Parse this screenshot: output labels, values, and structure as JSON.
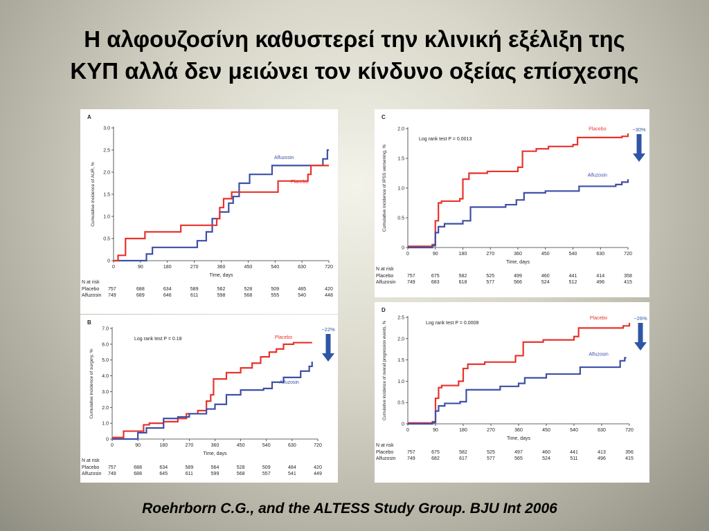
{
  "slide": {
    "title_line1": "Η αλφουζοσίνη καθυστερεί την κλινική εξέλιξη της",
    "title_line2": "ΚΥΠ αλλά δεν μειώνει τον κίνδυνο οξείας επίσχεσης",
    "citation": "Roehrborn C.G., and the ALTESS Study Group. BJU Int 2006"
  },
  "colors": {
    "placebo": "#e8322b",
    "alfuzosin": "#3d4fa6",
    "arrow": "#2f55a4",
    "axis": "#333333"
  },
  "chart_data": [
    {
      "panel": "A",
      "type": "line",
      "xlabel": "Time, days",
      "ylabel": "Cumulative incidence of AUR, %",
      "xlim": [
        0,
        720
      ],
      "ylim": [
        0,
        3.0
      ],
      "xticks": [
        0,
        90,
        180,
        270,
        360,
        450,
        540,
        630,
        720
      ],
      "yticks": [
        0,
        0.5,
        1.0,
        1.5,
        2.0,
        2.5,
        3.0
      ],
      "ytick_labels": [
        "0",
        "0.5",
        "1.0",
        "1.5",
        "2.0",
        "2.5",
        "3.0"
      ],
      "annotation": "",
      "series": [
        {
          "name": "Alfuzosin",
          "color": "#3d4fa6",
          "x": [
            0,
            85,
            110,
            130,
            230,
            280,
            310,
            330,
            355,
            385,
            400,
            420,
            455,
            490,
            530,
            565,
            700,
            710,
            715,
            720
          ],
          "y": [
            0,
            0,
            0.15,
            0.3,
            0.3,
            0.45,
            0.65,
            0.95,
            1.1,
            1.3,
            1.45,
            1.75,
            1.95,
            1.95,
            2.15,
            2.15,
            2.3,
            2.3,
            2.5,
            2.5
          ]
        },
        {
          "name": "Placebo",
          "color": "#e8322b",
          "x": [
            0,
            15,
            40,
            105,
            225,
            345,
            355,
            368,
            395,
            440,
            550,
            650,
            660,
            720
          ],
          "y": [
            0,
            0.12,
            0.5,
            0.65,
            0.8,
            0.95,
            1.2,
            1.4,
            1.55,
            1.55,
            1.8,
            1.95,
            2.15,
            2.15
          ]
        }
      ],
      "series_labels": [
        {
          "text": "Alfuzosin",
          "at_x": 570,
          "at_y": 2.3
        },
        {
          "text": "Placebo",
          "at_x": 622,
          "at_y": 1.75
        }
      ],
      "risk_table": {
        "header": "N at risk",
        "rows": [
          {
            "label": "Placebo",
            "values": [
              "757",
              "688",
              "634",
              "589",
              "562",
              "528",
              "509",
              "485",
              "420"
            ]
          },
          {
            "label": "Alfuzosin",
            "values": [
              "749",
              "689",
              "646",
              "611",
              "598",
              "568",
              "555",
              "540",
              "448"
            ]
          }
        ]
      }
    },
    {
      "panel": "B",
      "type": "line",
      "xlabel": "Time, days",
      "ylabel": "Cumulative incidence of surgery, %",
      "xlim": [
        0,
        720
      ],
      "ylim": [
        0,
        7.0
      ],
      "xticks": [
        0,
        90,
        180,
        270,
        360,
        450,
        540,
        630,
        720
      ],
      "yticks": [
        0,
        1.0,
        2.0,
        3.0,
        4.0,
        5.0,
        6.0,
        7.0
      ],
      "ytick_labels": [
        "0",
        "1.0",
        "2.0",
        "3.0",
        "4.0",
        "5.0",
        "6.0",
        "7.0"
      ],
      "annotation": "Log rank test P = 0.18",
      "arrow": {
        "label": "−22%"
      },
      "series": [
        {
          "name": "Placebo",
          "color": "#e8322b",
          "x": [
            0,
            40,
            80,
            110,
            130,
            180,
            230,
            260,
            300,
            330,
            345,
            355,
            400,
            450,
            490,
            520,
            550,
            575,
            600,
            635,
            700
          ],
          "y": [
            0.1,
            0.5,
            0.5,
            0.9,
            1.0,
            1.1,
            1.3,
            1.6,
            1.8,
            2.4,
            2.8,
            3.8,
            4.2,
            4.5,
            4.8,
            5.2,
            5.5,
            5.7,
            6.0,
            6.1,
            6.1
          ]
        },
        {
          "name": "Alfuzosin",
          "color": "#3d4fa6",
          "x": [
            0,
            75,
            90,
            120,
            180,
            230,
            270,
            330,
            360,
            400,
            450,
            530,
            560,
            600,
            660,
            690,
            700
          ],
          "y": [
            0,
            0,
            0.4,
            0.7,
            1.3,
            1.4,
            1.6,
            1.9,
            2.2,
            2.8,
            3.1,
            3.2,
            3.6,
            3.9,
            4.3,
            4.6,
            4.9
          ]
        }
      ],
      "series_labels": [
        {
          "text": "Placebo",
          "at_x": 600,
          "at_y": 6.35
        },
        {
          "text": "Alfuzosin",
          "at_x": 620,
          "at_y": 3.5
        }
      ],
      "risk_table": {
        "header": "N at risk",
        "rows": [
          {
            "label": "Placebo",
            "values": [
              "757",
              "688",
              "634",
              "589",
              "564",
              "528",
              "509",
              "484",
              "420"
            ]
          },
          {
            "label": "Alfuzosin",
            "values": [
              "749",
              "688",
              "645",
              "611",
              "599",
              "568",
              "557",
              "541",
              "449"
            ]
          }
        ]
      }
    },
    {
      "panel": "C",
      "type": "line",
      "xlabel": "Time, days",
      "ylabel": "Cumulative incidence of IPSS worsening, %",
      "xlim": [
        0,
        720
      ],
      "ylim": [
        0,
        2.0
      ],
      "xticks": [
        0,
        90,
        180,
        270,
        360,
        450,
        540,
        630,
        720
      ],
      "yticks": [
        0,
        0.5,
        1.0,
        1.5,
        2.0
      ],
      "ytick_labels": [
        "0",
        "0.5",
        "1.0",
        "1.5",
        "2.0"
      ],
      "annotation": "Log rank test P = 0.0013",
      "arrow": {
        "label": "−30%"
      },
      "series": [
        {
          "name": "Placebo",
          "color": "#e8322b",
          "x": [
            0,
            80,
            90,
            100,
            110,
            170,
            180,
            200,
            260,
            360,
            375,
            420,
            460,
            540,
            555,
            700,
            720
          ],
          "y": [
            0.02,
            0.05,
            0.45,
            0.75,
            0.78,
            0.82,
            1.15,
            1.25,
            1.28,
            1.35,
            1.62,
            1.66,
            1.7,
            1.73,
            1.85,
            1.87,
            1.92
          ]
        },
        {
          "name": "Alfuzosin",
          "color": "#3d4fa6",
          "x": [
            0,
            80,
            90,
            100,
            120,
            180,
            205,
            320,
            355,
            380,
            450,
            560,
            680,
            700,
            720
          ],
          "y": [
            0,
            0.03,
            0.25,
            0.35,
            0.4,
            0.45,
            0.68,
            0.72,
            0.8,
            0.92,
            0.95,
            1.03,
            1.06,
            1.1,
            1.15
          ]
        }
      ],
      "series_labels": [
        {
          "text": "Placebo",
          "at_x": 620,
          "at_y": 1.97
        },
        {
          "text": "Alfuzosin",
          "at_x": 620,
          "at_y": 1.19
        }
      ],
      "risk_table": {
        "header": "N at risk",
        "rows": [
          {
            "label": "Placebo",
            "values": [
              "757",
              "675",
              "582",
              "525",
              "499",
              "460",
              "441",
              "414",
              "358"
            ]
          },
          {
            "label": "Alfuzosin",
            "values": [
              "749",
              "683",
              "618",
              "577",
              "566",
              "524",
              "512",
              "496",
              "415"
            ]
          }
        ]
      }
    },
    {
      "panel": "D",
      "type": "line",
      "xlabel": "Time, days",
      "ylabel": "Cumulative incidence of overall progression events, %",
      "xlim": [
        0,
        720
      ],
      "ylim": [
        0,
        2.5
      ],
      "xticks": [
        0,
        90,
        180,
        270,
        360,
        450,
        540,
        630,
        720
      ],
      "yticks": [
        0,
        0.5,
        1.0,
        1.5,
        2.0,
        2.5
      ],
      "ytick_labels": [
        "0",
        "0.5",
        "1.0",
        "1.5",
        "2.0",
        "2.5"
      ],
      "annotation": "Log rank test P = 0.0008",
      "arrow": {
        "label": "−26%"
      },
      "series": [
        {
          "name": "Placebo",
          "color": "#e8322b",
          "x": [
            0,
            80,
            90,
            100,
            110,
            165,
            180,
            195,
            250,
            350,
            375,
            440,
            540,
            555,
            700,
            720
          ],
          "y": [
            0.02,
            0.05,
            0.6,
            0.85,
            0.9,
            1.0,
            1.3,
            1.4,
            1.45,
            1.6,
            1.92,
            1.97,
            2.05,
            2.25,
            2.3,
            2.37
          ]
        },
        {
          "name": "Alfuzosin",
          "color": "#3d4fa6",
          "x": [
            0,
            80,
            90,
            100,
            120,
            170,
            190,
            300,
            360,
            380,
            450,
            560,
            690,
            705,
            710
          ],
          "y": [
            0,
            0.03,
            0.3,
            0.42,
            0.48,
            0.52,
            0.8,
            0.88,
            0.95,
            1.08,
            1.17,
            1.33,
            1.48,
            1.55,
            1.55
          ]
        }
      ],
      "series_labels": [
        {
          "text": "Placebo",
          "at_x": 620,
          "at_y": 2.45
        },
        {
          "text": "Alfuzosin",
          "at_x": 620,
          "at_y": 1.6
        }
      ],
      "risk_table": {
        "header": "N at risk",
        "rows": [
          {
            "label": "Placebo",
            "values": [
              "757",
              "675",
              "582",
              "525",
              "497",
              "460",
              "441",
              "413",
              "356"
            ]
          },
          {
            "label": "Alfuzosin",
            "values": [
              "749",
              "682",
              "617",
              "577",
              "565",
              "524",
              "511",
              "496",
              "415"
            ]
          }
        ]
      }
    }
  ]
}
